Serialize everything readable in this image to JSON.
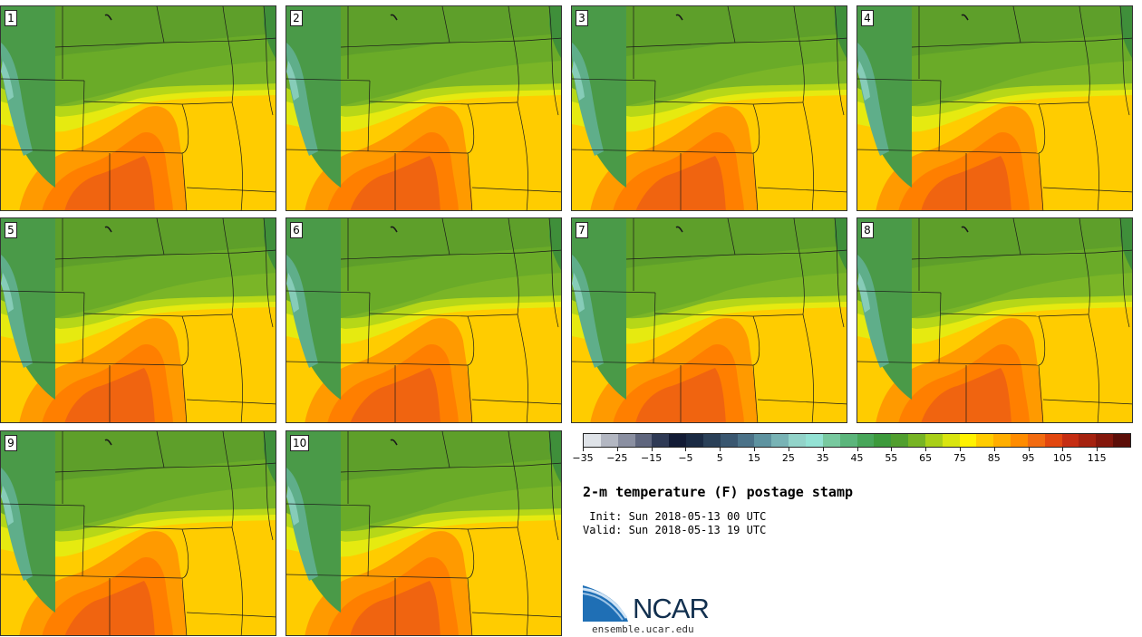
{
  "panels": [
    {
      "label": "1"
    },
    {
      "label": "2"
    },
    {
      "label": "3"
    },
    {
      "label": "4"
    },
    {
      "label": "5"
    },
    {
      "label": "6"
    },
    {
      "label": "7"
    },
    {
      "label": "8"
    },
    {
      "label": "9"
    },
    {
      "label": "10"
    }
  ],
  "colorbar": {
    "colors": [
      "#dfe3e8",
      "#b3b7c2",
      "#8a8fa1",
      "#5f667e",
      "#2f3a55",
      "#121b35",
      "#1a2a43",
      "#2a4058",
      "#3a5770",
      "#4b7288",
      "#5e93a0",
      "#78b3b5",
      "#92d3c9",
      "#93e2d4",
      "#78c99f",
      "#5bb57b",
      "#48a65a",
      "#3d9a3c",
      "#519f2f",
      "#77b424",
      "#a9cf18",
      "#d9e510",
      "#fff200",
      "#ffcc00",
      "#ffae00",
      "#ff8c00",
      "#f26b10",
      "#e2470f",
      "#c52d12",
      "#a5220f",
      "#84170c",
      "#5c0e08"
    ],
    "tick_labels": [
      "−35",
      "−25",
      "−15",
      "−5",
      "5",
      "15",
      "25",
      "35",
      "45",
      "55",
      "65",
      "75",
      "85",
      "95",
      "105",
      "115"
    ],
    "units": "F"
  },
  "title": "2-m temperature (F) postage stamp",
  "init_line": " Init: Sun 2018-05-13 00 UTC",
  "valid_line": "Valid: Sun 2018-05-13 19 UTC",
  "logo": {
    "text": "NCAR",
    "site": "ensemble.ucar.edu"
  }
}
